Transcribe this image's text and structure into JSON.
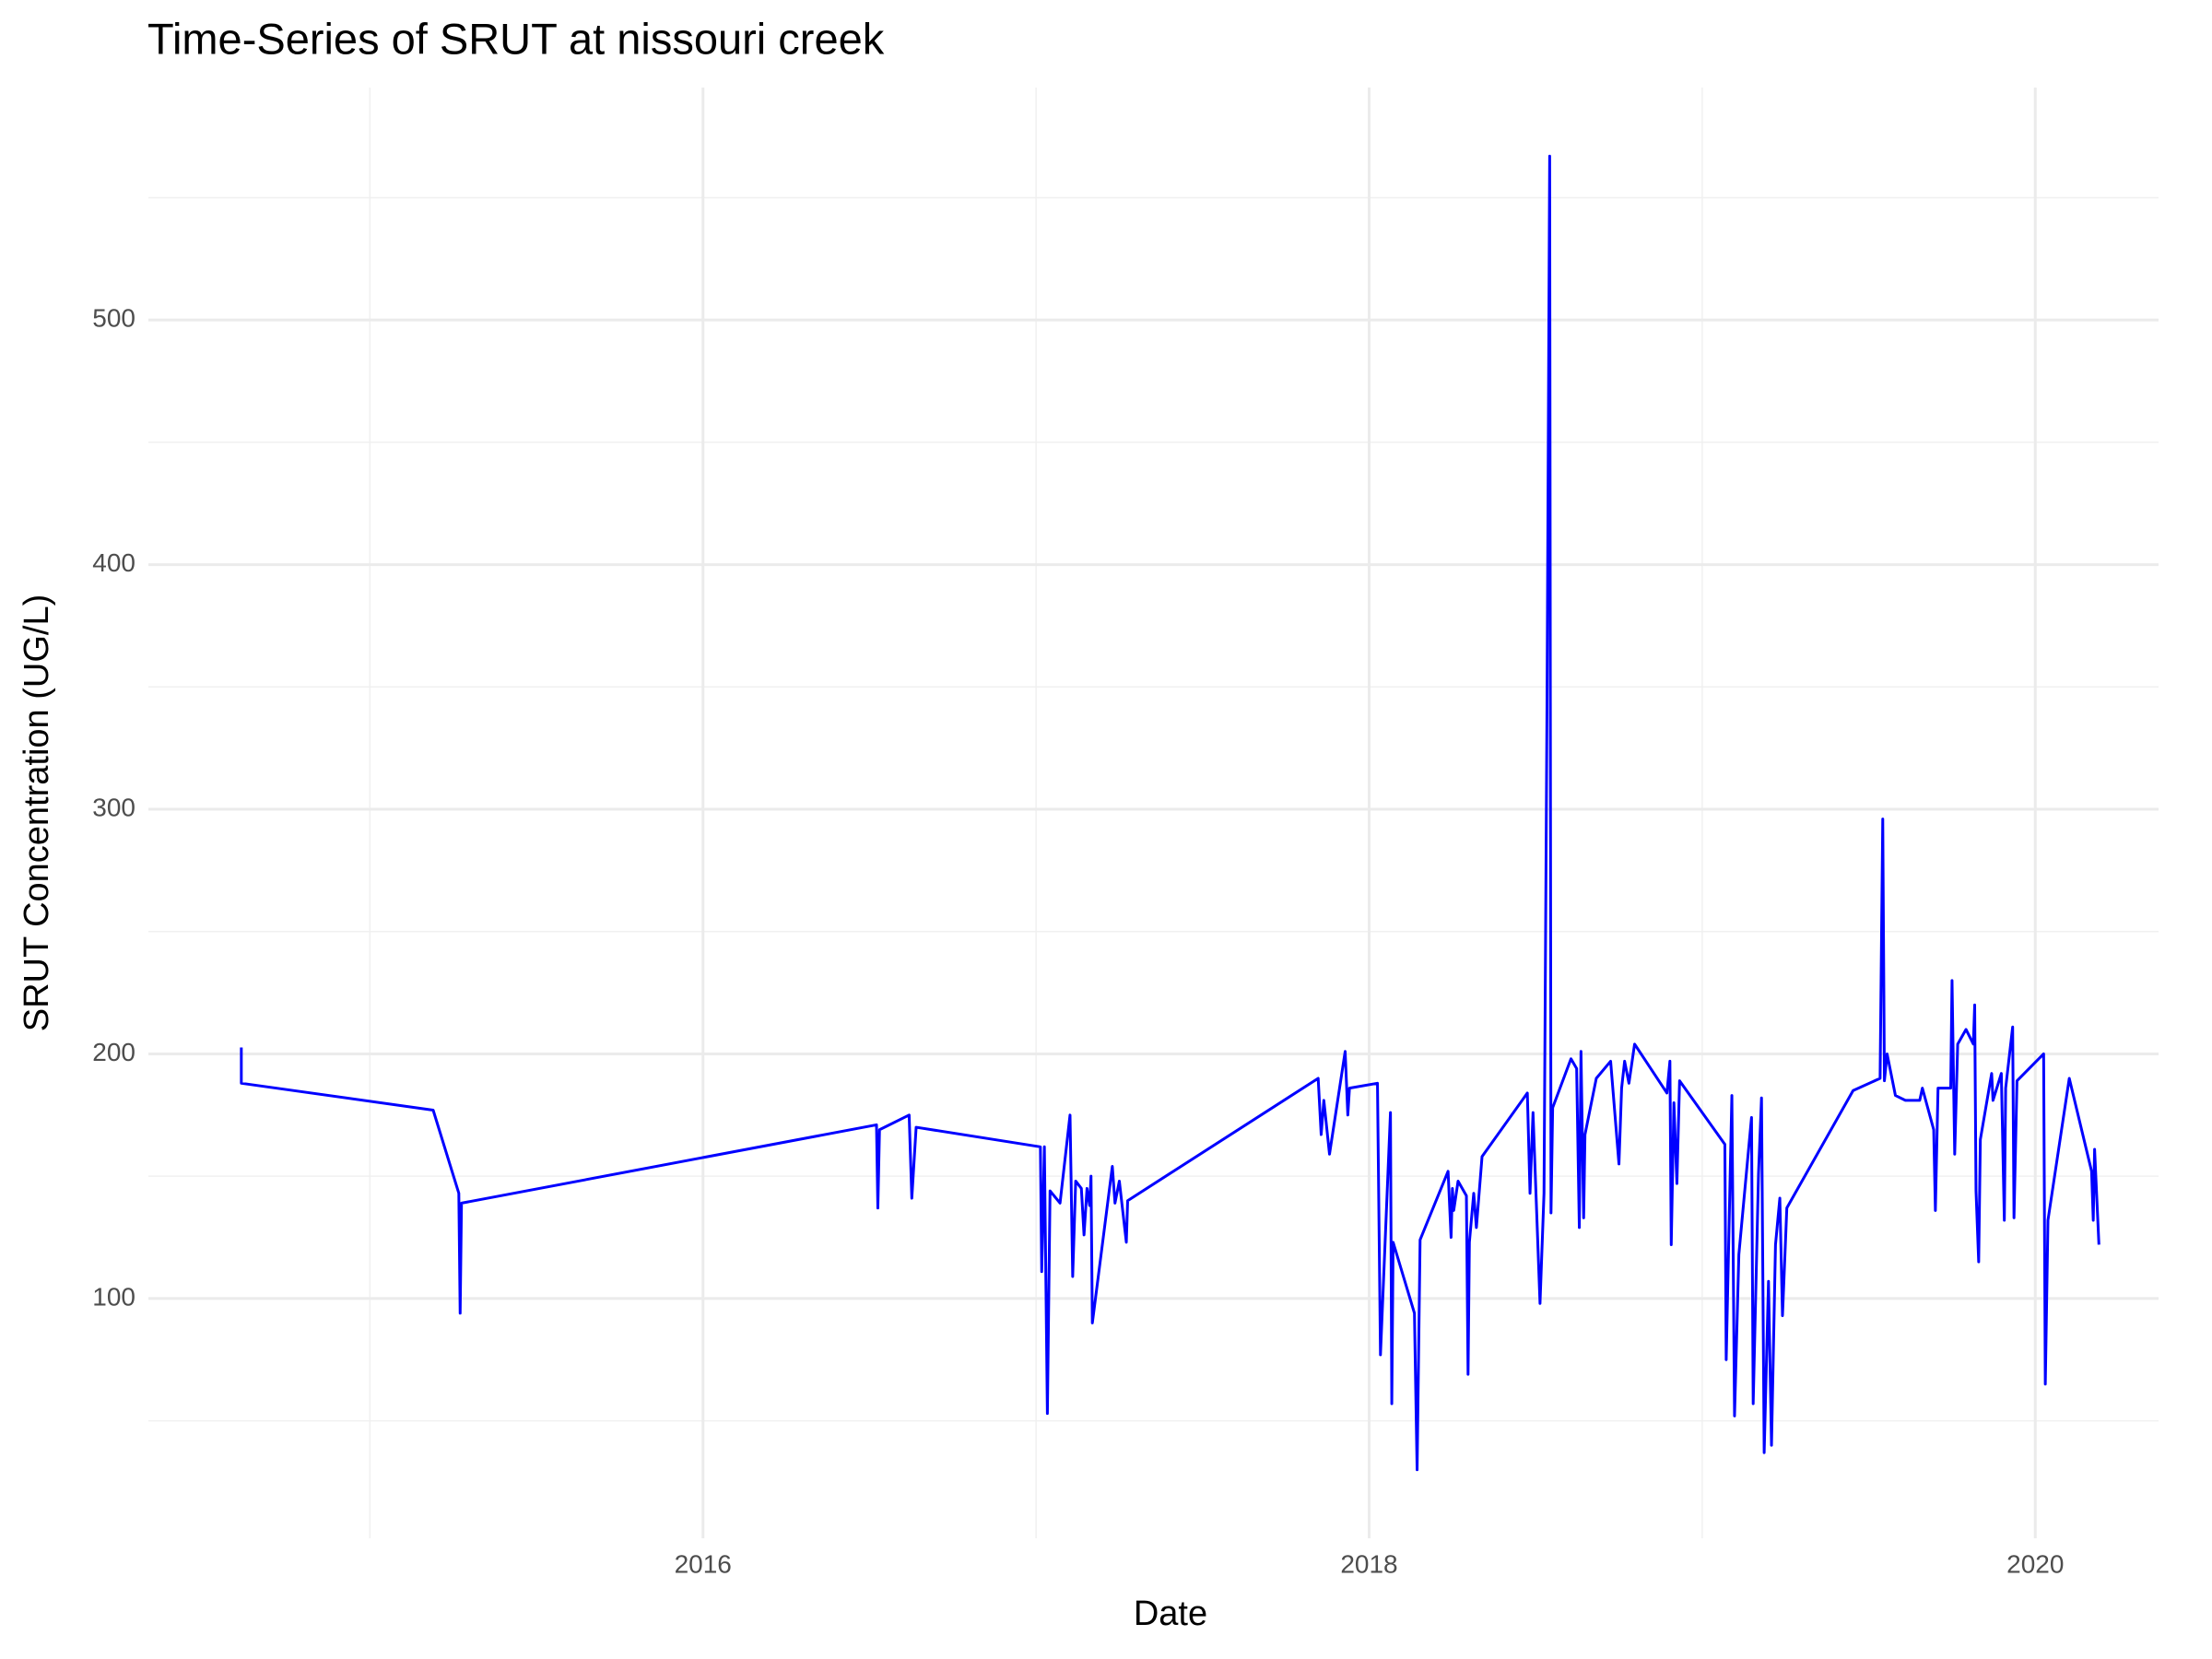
{
  "chart_data": {
    "type": "line",
    "title": "Time-Series of SRUT at nissouri creek",
    "x_label": "Date",
    "y_label": "SRUT Concentration (UG/L)",
    "color": "#0000ff",
    "grid": true,
    "x": [
      2014.614,
      2014.614,
      2015.19,
      2015.267,
      2015.271,
      2015.275,
      2016.521,
      2016.525,
      2016.53,
      2016.619,
      2016.627,
      2016.64,
      2017.013,
      2017.017,
      2017.025,
      2017.034,
      2017.042,
      2017.072,
      2017.102,
      2017.11,
      2017.119,
      2017.136,
      2017.144,
      2017.153,
      2017.161,
      2017.165,
      2017.169,
      2017.229,
      2017.237,
      2017.25,
      2017.271,
      2017.275,
      2017.847,
      2017.856,
      2017.864,
      2017.881,
      2017.928,
      2017.936,
      2017.941,
      2018.025,
      2018.034,
      2018.064,
      2018.068,
      2018.072,
      2018.136,
      2018.144,
      2018.153,
      2018.237,
      2018.246,
      2018.25,
      2018.254,
      2018.267,
      2018.292,
      2018.297,
      2018.301,
      2018.314,
      2018.322,
      2018.339,
      2018.475,
      2018.483,
      2018.492,
      2018.513,
      2018.525,
      2018.534,
      2018.542,
      2018.546,
      2018.551,
      2018.606,
      2018.623,
      2018.631,
      2018.636,
      2018.644,
      2018.648,
      2018.682,
      2018.725,
      2018.75,
      2018.758,
      2018.767,
      2018.78,
      2018.797,
      2018.894,
      2018.903,
      2018.907,
      2018.915,
      2018.924,
      2018.932,
      2019.068,
      2019.072,
      2019.089,
      2019.097,
      2019.11,
      2019.148,
      2019.153,
      2019.169,
      2019.178,
      2019.186,
      2019.199,
      2019.208,
      2019.22,
      2019.233,
      2019.241,
      2019.254,
      2019.453,
      2019.534,
      2019.542,
      2019.547,
      2019.555,
      2019.58,
      2019.61,
      2019.653,
      2019.661,
      2019.695,
      2019.7,
      2019.708,
      2019.746,
      2019.75,
      2019.758,
      2019.767,
      2019.792,
      2019.814,
      2019.818,
      2019.822,
      2019.83,
      2019.835,
      2019.869,
      2019.873,
      2019.898,
      2019.907,
      2019.911,
      2019.932,
      2019.936,
      2019.945,
      2020.025,
      2020.03,
      2020.038,
      2020.102,
      2020.169,
      2020.174,
      2020.178,
      2020.191
    ],
    "values": [
      202.6,
      188,
      177,
      143,
      94,
      139,
      171,
      137,
      169,
      175,
      141,
      170,
      162,
      111,
      162,
      53,
      144,
      139,
      175,
      109,
      148,
      145,
      126,
      145,
      138,
      150,
      90,
      154,
      139,
      148,
      123,
      140,
      190,
      167,
      181,
      159,
      201,
      175,
      186,
      188,
      77,
      176,
      57,
      123,
      94,
      30,
      124,
      152,
      125,
      145,
      136,
      148,
      142,
      69,
      123,
      143,
      129,
      158,
      184,
      143,
      176,
      98,
      143,
      342,
      567,
      135,
      178,
      198,
      194,
      129,
      201,
      133,
      167,
      190,
      197,
      155,
      186,
      197,
      188,
      204,
      184,
      197,
      122,
      180,
      147,
      189,
      163,
      75,
      183,
      52,
      118,
      174,
      57,
      151,
      182,
      37,
      107,
      40,
      122,
      141,
      93,
      137,
      185,
      190,
      296,
      189,
      200,
      183,
      181,
      181,
      186,
      169,
      136,
      186,
      186,
      230,
      159,
      204,
      210,
      204,
      220,
      144,
      115,
      165,
      192,
      181,
      192,
      132,
      186,
      211,
      133,
      189,
      200,
      65,
      132,
      190,
      152,
      132,
      161,
      122
    ],
    "xlim": [
      2014.335,
      2020.37
    ],
    "xticks": [
      2016,
      2018,
      2020
    ],
    "ylim": [
      2,
      595
    ],
    "yticks": [
      100,
      200,
      300,
      400,
      500
    ]
  }
}
